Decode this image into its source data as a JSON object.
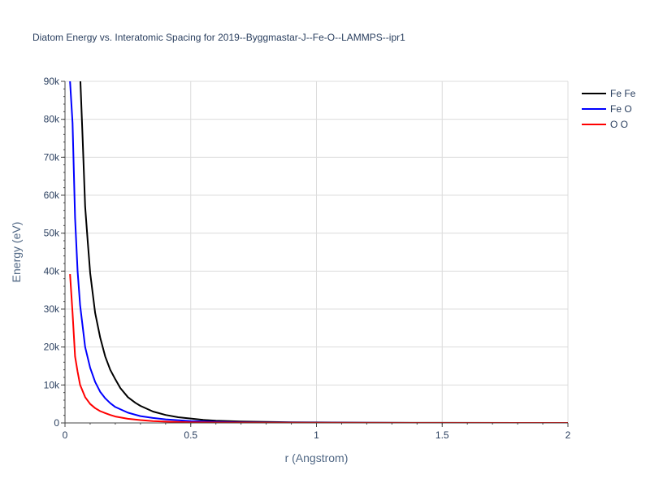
{
  "chart_data": {
    "type": "line",
    "title": "Diatom Energy vs. Interatomic Spacing for 2019--Byggmastar-J--Fe-O--LAMMPS--ipr1",
    "xlabel": "r (Angstrom)",
    "ylabel": "Energy (eV)",
    "xlim": [
      0,
      2
    ],
    "ylim": [
      0,
      90000
    ],
    "x_ticks": [
      0,
      0.5,
      1,
      1.5,
      2
    ],
    "x_tick_labels": [
      "0",
      "0.5",
      "1",
      "1.5",
      "2"
    ],
    "y_ticks": [
      0,
      10000,
      20000,
      30000,
      40000,
      50000,
      60000,
      70000,
      80000,
      90000
    ],
    "y_tick_labels": [
      "0",
      "10k",
      "20k",
      "30k",
      "40k",
      "50k",
      "60k",
      "70k",
      "80k",
      "90k"
    ],
    "grid": true,
    "legend_position": "top-right",
    "series": [
      {
        "name": "Fe Fe",
        "color": "#000000",
        "x": [
          0.06,
          0.07,
          0.08,
          0.09,
          0.1,
          0.12,
          0.14,
          0.16,
          0.18,
          0.2,
          0.22,
          0.25,
          0.28,
          0.3,
          0.35,
          0.4,
          0.45,
          0.5,
          0.55,
          0.6,
          0.7,
          0.8,
          0.9,
          1.0,
          1.2,
          1.5,
          1.8,
          2.0
        ],
        "y": [
          92000,
          75000,
          57000,
          48000,
          39500,
          29000,
          22500,
          17500,
          14000,
          11500,
          9200,
          6800,
          5300,
          4500,
          3000,
          2100,
          1500,
          1150,
          800,
          600,
          380,
          260,
          180,
          130,
          70,
          30,
          10,
          5
        ]
      },
      {
        "name": "Fe O",
        "color": "#0000ff",
        "x": [
          0.02,
          0.03,
          0.04,
          0.05,
          0.06,
          0.08,
          0.1,
          0.12,
          0.14,
          0.16,
          0.18,
          0.2,
          0.25,
          0.3,
          0.35,
          0.4,
          0.5,
          0.6,
          0.7,
          0.8,
          1.0,
          1.2,
          1.5,
          1.8,
          2.0
        ],
        "y": [
          90000,
          79000,
          54000,
          40000,
          31000,
          20000,
          14500,
          10800,
          8200,
          6500,
          5200,
          4200,
          2700,
          1800,
          1300,
          950,
          500,
          300,
          180,
          110,
          50,
          25,
          10,
          4,
          2
        ]
      },
      {
        "name": "O O",
        "color": "#ff0000",
        "x": [
          0.02,
          0.03,
          0.04,
          0.05,
          0.06,
          0.08,
          0.1,
          0.12,
          0.14,
          0.16,
          0.18,
          0.2,
          0.25,
          0.3,
          0.35,
          0.4,
          0.5,
          0.6,
          0.8,
          1.0,
          1.5,
          2.0
        ],
        "y": [
          39200,
          29000,
          17500,
          13500,
          10000,
          6800,
          5000,
          3900,
          3100,
          2600,
          2100,
          1700,
          1100,
          750,
          500,
          350,
          180,
          100,
          40,
          15,
          4,
          1
        ]
      }
    ]
  }
}
